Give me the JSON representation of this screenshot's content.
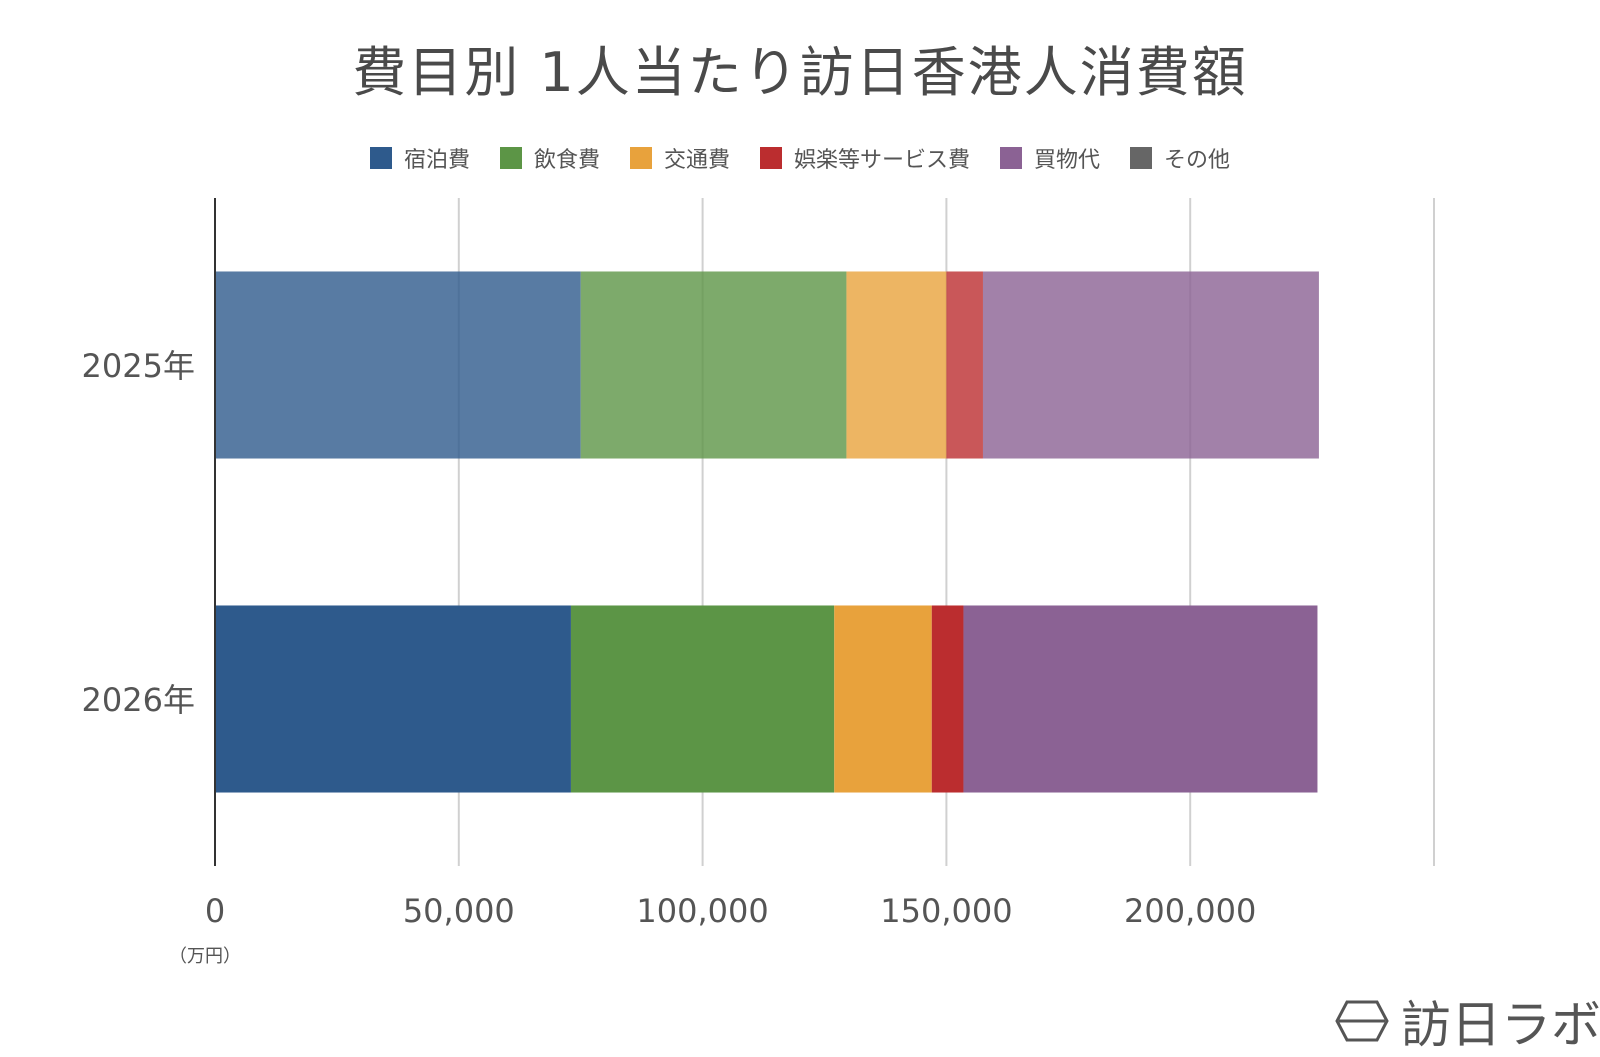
{
  "chart_data": {
    "type": "bar",
    "orientation": "horizontal",
    "stacked": true,
    "title": "費目別 1人当たり訪日香港人消費額",
    "categories": [
      "2025年",
      "2026年"
    ],
    "series": [
      {
        "name": "宿泊費",
        "values": [
          75000,
          73000
        ]
      },
      {
        "name": "飲食費",
        "values": [
          54500,
          54000
        ]
      },
      {
        "name": "交通費",
        "values": [
          20500,
          20000
        ]
      },
      {
        "name": "娯楽等サービス費",
        "values": [
          7500,
          6500
        ]
      },
      {
        "name": "買物代",
        "values": [
          68900,
          72600
        ]
      },
      {
        "name": "その他",
        "values": [
          0,
          0
        ]
      }
    ],
    "xlim": [
      0,
      250000
    ],
    "xticks": [
      0,
      50000,
      100000,
      150000,
      200000
    ],
    "xtick_labels": [
      "0",
      "50,000",
      "100,000",
      "150,000",
      "200,000"
    ],
    "unit_label": "（万円）",
    "grid": true,
    "legend_position": "top"
  },
  "colors": {
    "宿泊費": "#2e5a8c",
    "飲食費": "#5c9546",
    "交通費": "#e8a23c",
    "娯楽等サービス費": "#bb2d2f",
    "買物代": "#8b6294",
    "その他": "#666666"
  },
  "brand": {
    "logo_text": "訪日ラボ",
    "icon": "hexagon-logo-icon"
  }
}
